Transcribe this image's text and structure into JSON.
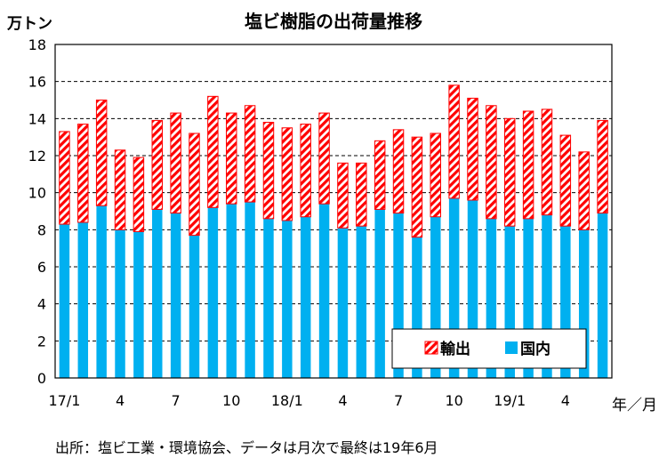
{
  "chart_data": {
    "type": "bar",
    "stacked": true,
    "title": "塩ビ樹脂の出荷量推移",
    "ylabel": "万トン",
    "xlabel": "年／月",
    "ylim": [
      0,
      18
    ],
    "yticks": [
      0,
      2,
      4,
      6,
      8,
      10,
      12,
      14,
      16,
      18
    ],
    "gridlines": "dashed",
    "legend_position": "bottom-right",
    "categories": [
      "17/1",
      "2",
      "3",
      "4",
      "5",
      "6",
      "7",
      "8",
      "9",
      "10",
      "11",
      "12",
      "18/1",
      "2",
      "3",
      "4",
      "5",
      "6",
      "7",
      "8",
      "9",
      "10",
      "11",
      "12",
      "19/1",
      "2",
      "3",
      "4",
      "5",
      "6"
    ],
    "tick_labels": [
      "17/1",
      "",
      "",
      "4",
      "",
      "",
      "7",
      "",
      "",
      "10",
      "",
      "",
      "18/1",
      "",
      "",
      "4",
      "",
      "",
      "7",
      "",
      "",
      "10",
      "",
      "",
      "19/1",
      "",
      "",
      "4",
      "",
      ""
    ],
    "series": [
      {
        "name": "国内",
        "color": "#00B0F0",
        "values": [
          8.3,
          8.4,
          9.3,
          8.0,
          7.9,
          9.1,
          8.9,
          7.7,
          9.2,
          9.4,
          9.5,
          8.6,
          8.5,
          8.7,
          9.4,
          8.1,
          8.2,
          9.1,
          8.9,
          7.6,
          8.7,
          9.7,
          9.6,
          8.6,
          8.2,
          8.6,
          8.8,
          8.2,
          8.0,
          8.9
        ]
      },
      {
        "name": "輸出",
        "color": "#FF0000",
        "pattern": "diagonal-stripes",
        "values": [
          5.0,
          5.3,
          5.7,
          4.3,
          4.0,
          4.8,
          5.4,
          5.5,
          6.0,
          4.9,
          5.2,
          5.2,
          5.0,
          5.0,
          4.9,
          3.5,
          3.4,
          3.7,
          4.5,
          5.4,
          4.5,
          6.1,
          5.5,
          6.1,
          5.8,
          5.8,
          5.7,
          4.9,
          4.2,
          5.0
        ]
      }
    ],
    "legend": [
      "輸出",
      "国内"
    ]
  },
  "source_note": "出所：塩ビ工業・環境協会、データは月次で最終は19年6月"
}
